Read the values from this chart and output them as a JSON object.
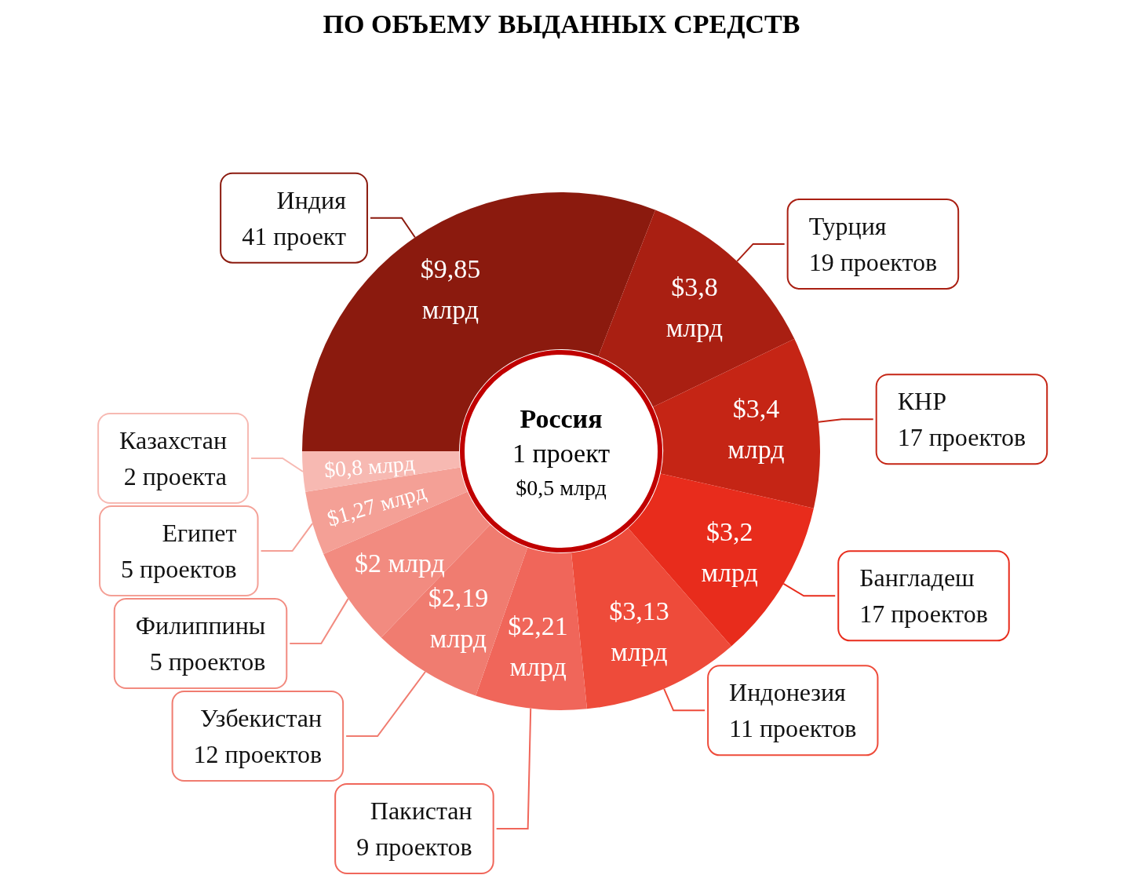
{
  "chart_data": {
    "type": "donut",
    "title": "ПО ОБЪЕМУ ВЫДАННЫХ СРЕДСТВ",
    "categories": [
      "Индия\n41 проект",
      "Турция\n19 проектов",
      "КНР\n17 проектов",
      "Бангладеш\n17 проектов",
      "Индонезия\n11 проектов",
      "Пакистан\n9 проектов",
      "Узбекистан\n12 проектов",
      "Филиппины\n5 проектов",
      "Египет\n5 проектов",
      "Казахстан\n2 проекта"
    ],
    "values": [
      9.85,
      3.8,
      3.4,
      3.2,
      3.13,
      2.21,
      2.19,
      2,
      1.27,
      0.8
    ],
    "value_labels": [
      "$9,85\nмлрд",
      "$3,8\nмлрд",
      "$3,4\nмлрд",
      "$3,2\nмлрд",
      "$3,13\nмлрд",
      "$2,21\nмлрд",
      "$2,19\nмлрд",
      "$2 млрд",
      "$1,27\nмлрд",
      "$0,8\nмлрд"
    ],
    "colors": [
      "#8b1a0e",
      "#a91f12",
      "#c52515",
      "#e82c1c",
      "#ee4b3a",
      "#f0665a",
      "#f07c70",
      "#f28b80",
      "#f4a096",
      "#f7b9b2"
    ],
    "annotations": [
      "Россия",
      "1 проект",
      "$0,5 млрд"
    ],
    "legend": false
  }
}
